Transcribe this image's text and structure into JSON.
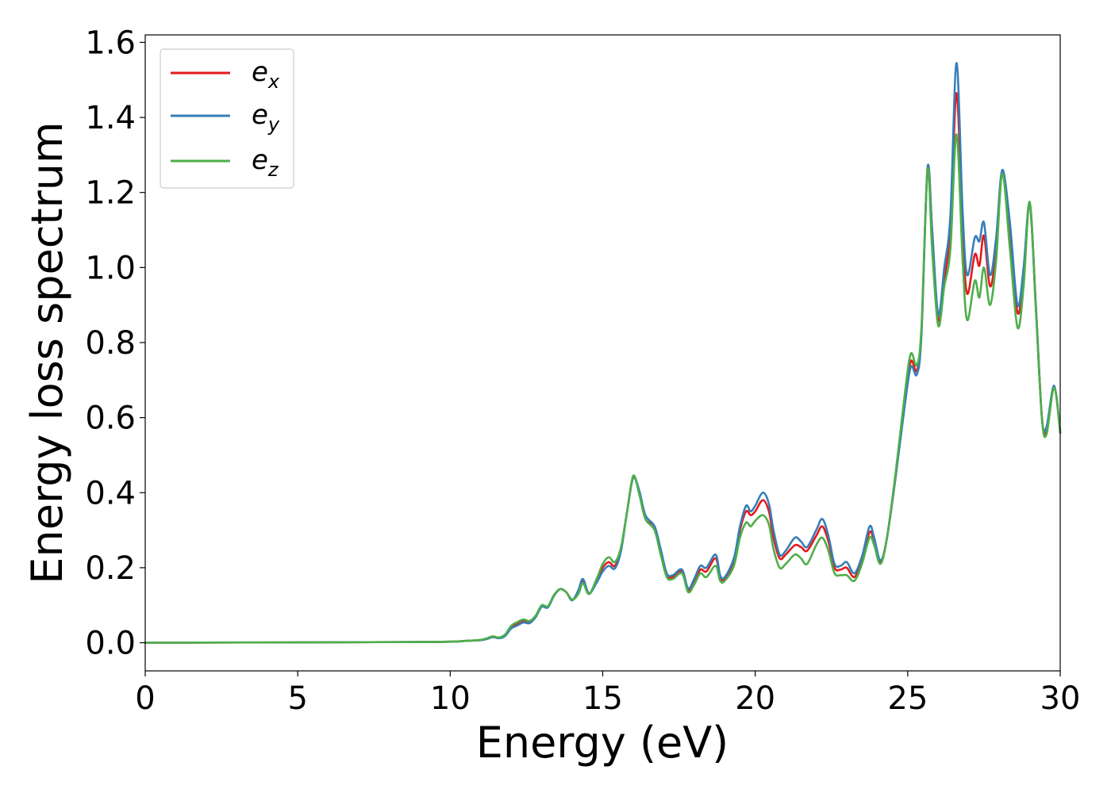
{
  "chart_data": {
    "type": "line",
    "title": "",
    "xlabel": "Energy (eV)",
    "ylabel": "Energy loss spectrum",
    "xlim": [
      0,
      30
    ],
    "ylim": [
      -0.075,
      1.62
    ],
    "xticks": [
      0,
      5,
      10,
      15,
      20,
      25,
      30
    ],
    "xtick_labels": [
      "0",
      "5",
      "10",
      "15",
      "20",
      "25",
      "30"
    ],
    "yticks": [
      0.0,
      0.2,
      0.4,
      0.6,
      0.8,
      1.0,
      1.2,
      1.4,
      1.6
    ],
    "ytick_labels": [
      "0.0",
      "0.2",
      "0.4",
      "0.6",
      "0.8",
      "1.0",
      "1.2",
      "1.4",
      "1.6"
    ],
    "grid": false,
    "legend_position": "top-left",
    "series": [
      {
        "name": "e_x",
        "legend_base": "e",
        "legend_sub": "x",
        "color": "#e41a1c",
        "points": [
          [
            0,
            0
          ],
          [
            9,
            0.002
          ],
          [
            10.5,
            0.005
          ],
          [
            11,
            0.007
          ],
          [
            11.2,
            0.01
          ],
          [
            11.4,
            0.016
          ],
          [
            11.6,
            0.013
          ],
          [
            11.8,
            0.02
          ],
          [
            12,
            0.04
          ],
          [
            12.2,
            0.05
          ],
          [
            12.4,
            0.058
          ],
          [
            12.6,
            0.055
          ],
          [
            12.8,
            0.07
          ],
          [
            13,
            0.098
          ],
          [
            13.2,
            0.095
          ],
          [
            13.4,
            0.125
          ],
          [
            13.6,
            0.143
          ],
          [
            13.8,
            0.135
          ],
          [
            14,
            0.115
          ],
          [
            14.2,
            0.135
          ],
          [
            14.35,
            0.165
          ],
          [
            14.55,
            0.13
          ],
          [
            14.8,
            0.165
          ],
          [
            15,
            0.2
          ],
          [
            15.2,
            0.215
          ],
          [
            15.4,
            0.205
          ],
          [
            15.6,
            0.25
          ],
          [
            15.8,
            0.35
          ],
          [
            16,
            0.44
          ],
          [
            16.2,
            0.4
          ],
          [
            16.4,
            0.33
          ],
          [
            16.7,
            0.31
          ],
          [
            16.9,
            0.245
          ],
          [
            17.1,
            0.18
          ],
          [
            17.3,
            0.175
          ],
          [
            17.6,
            0.19
          ],
          [
            17.8,
            0.14
          ],
          [
            18,
            0.16
          ],
          [
            18.2,
            0.195
          ],
          [
            18.4,
            0.19
          ],
          [
            18.7,
            0.225
          ],
          [
            18.85,
            0.175
          ],
          [
            19,
            0.17
          ],
          [
            19.3,
            0.215
          ],
          [
            19.5,
            0.3
          ],
          [
            19.7,
            0.35
          ],
          [
            19.85,
            0.34
          ],
          [
            20,
            0.35
          ],
          [
            20.25,
            0.38
          ],
          [
            20.45,
            0.35
          ],
          [
            20.6,
            0.28
          ],
          [
            20.8,
            0.225
          ],
          [
            21,
            0.235
          ],
          [
            21.3,
            0.26
          ],
          [
            21.5,
            0.255
          ],
          [
            21.7,
            0.245
          ],
          [
            22,
            0.285
          ],
          [
            22.2,
            0.31
          ],
          [
            22.4,
            0.27
          ],
          [
            22.6,
            0.2
          ],
          [
            22.8,
            0.195
          ],
          [
            23,
            0.2
          ],
          [
            23.25,
            0.175
          ],
          [
            23.5,
            0.22
          ],
          [
            23.75,
            0.295
          ],
          [
            23.9,
            0.27
          ],
          [
            24.1,
            0.215
          ],
          [
            24.3,
            0.27
          ],
          [
            24.6,
            0.44
          ],
          [
            24.9,
            0.64
          ],
          [
            25.1,
            0.75
          ],
          [
            25.3,
            0.725
          ],
          [
            25.45,
            0.83
          ],
          [
            25.65,
            1.265
          ],
          [
            25.8,
            1.1
          ],
          [
            26,
            0.86
          ],
          [
            26.2,
            0.97
          ],
          [
            26.4,
            1.1
          ],
          [
            26.6,
            1.465
          ],
          [
            26.8,
            1.1
          ],
          [
            26.95,
            0.93
          ],
          [
            27.2,
            1.035
          ],
          [
            27.35,
            1.005
          ],
          [
            27.5,
            1.085
          ],
          [
            27.7,
            0.95
          ],
          [
            27.9,
            1.05
          ],
          [
            28.1,
            1.255
          ],
          [
            28.35,
            1.1
          ],
          [
            28.6,
            0.88
          ],
          [
            28.8,
            0.98
          ],
          [
            29,
            1.17
          ],
          [
            29.2,
            0.9
          ],
          [
            29.4,
            0.6
          ],
          [
            29.55,
            0.565
          ],
          [
            29.8,
            0.68
          ],
          [
            30,
            0.56
          ]
        ]
      },
      {
        "name": "e_y",
        "legend_base": "e",
        "legend_sub": "y",
        "color": "#377eb8",
        "points": [
          [
            0,
            0
          ],
          [
            9,
            0.002
          ],
          [
            10.5,
            0.005
          ],
          [
            11,
            0.007
          ],
          [
            11.2,
            0.01
          ],
          [
            11.4,
            0.015
          ],
          [
            11.6,
            0.012
          ],
          [
            11.8,
            0.018
          ],
          [
            12,
            0.038
          ],
          [
            12.2,
            0.046
          ],
          [
            12.4,
            0.054
          ],
          [
            12.6,
            0.052
          ],
          [
            12.8,
            0.068
          ],
          [
            13,
            0.096
          ],
          [
            13.2,
            0.094
          ],
          [
            13.4,
            0.125
          ],
          [
            13.6,
            0.143
          ],
          [
            13.8,
            0.135
          ],
          [
            14,
            0.113
          ],
          [
            14.2,
            0.14
          ],
          [
            14.35,
            0.17
          ],
          [
            14.55,
            0.132
          ],
          [
            14.8,
            0.16
          ],
          [
            15,
            0.19
          ],
          [
            15.2,
            0.205
          ],
          [
            15.4,
            0.198
          ],
          [
            15.6,
            0.245
          ],
          [
            15.8,
            0.35
          ],
          [
            16,
            0.44
          ],
          [
            16.2,
            0.405
          ],
          [
            16.4,
            0.34
          ],
          [
            16.7,
            0.31
          ],
          [
            16.9,
            0.25
          ],
          [
            17.1,
            0.185
          ],
          [
            17.3,
            0.18
          ],
          [
            17.6,
            0.195
          ],
          [
            17.8,
            0.145
          ],
          [
            18,
            0.17
          ],
          [
            18.2,
            0.205
          ],
          [
            18.4,
            0.2
          ],
          [
            18.7,
            0.235
          ],
          [
            18.85,
            0.18
          ],
          [
            19,
            0.175
          ],
          [
            19.3,
            0.225
          ],
          [
            19.5,
            0.31
          ],
          [
            19.7,
            0.365
          ],
          [
            19.85,
            0.35
          ],
          [
            20,
            0.365
          ],
          [
            20.25,
            0.4
          ],
          [
            20.45,
            0.37
          ],
          [
            20.6,
            0.3
          ],
          [
            20.8,
            0.235
          ],
          [
            21,
            0.245
          ],
          [
            21.3,
            0.28
          ],
          [
            21.5,
            0.27
          ],
          [
            21.7,
            0.255
          ],
          [
            22,
            0.3
          ],
          [
            22.2,
            0.33
          ],
          [
            22.4,
            0.285
          ],
          [
            22.6,
            0.21
          ],
          [
            22.8,
            0.205
          ],
          [
            23,
            0.215
          ],
          [
            23.25,
            0.185
          ],
          [
            23.5,
            0.23
          ],
          [
            23.75,
            0.31
          ],
          [
            23.9,
            0.28
          ],
          [
            24.1,
            0.22
          ],
          [
            24.3,
            0.27
          ],
          [
            24.6,
            0.44
          ],
          [
            24.9,
            0.63
          ],
          [
            25.1,
            0.735
          ],
          [
            25.3,
            0.715
          ],
          [
            25.45,
            0.82
          ],
          [
            25.65,
            1.265
          ],
          [
            25.8,
            1.1
          ],
          [
            26,
            0.875
          ],
          [
            26.2,
            1
          ],
          [
            26.4,
            1.14
          ],
          [
            26.6,
            1.545
          ],
          [
            26.8,
            1.15
          ],
          [
            26.95,
            0.98
          ],
          [
            27.2,
            1.08
          ],
          [
            27.35,
            1.07
          ],
          [
            27.5,
            1.12
          ],
          [
            27.7,
            0.98
          ],
          [
            27.9,
            1.08
          ],
          [
            28.1,
            1.26
          ],
          [
            28.35,
            1.12
          ],
          [
            28.6,
            0.9
          ],
          [
            28.8,
            1
          ],
          [
            29,
            1.17
          ],
          [
            29.2,
            0.9
          ],
          [
            29.4,
            0.6
          ],
          [
            29.55,
            0.575
          ],
          [
            29.8,
            0.685
          ],
          [
            30,
            0.56
          ]
        ]
      },
      {
        "name": "e_z",
        "legend_base": "e",
        "legend_sub": "z",
        "color": "#4daf4a",
        "points": [
          [
            0,
            0
          ],
          [
            9,
            0.002
          ],
          [
            10.5,
            0.005
          ],
          [
            11,
            0.008
          ],
          [
            11.2,
            0.012
          ],
          [
            11.4,
            0.017
          ],
          [
            11.6,
            0.014
          ],
          [
            11.8,
            0.022
          ],
          [
            12,
            0.045
          ],
          [
            12.2,
            0.055
          ],
          [
            12.4,
            0.062
          ],
          [
            12.6,
            0.058
          ],
          [
            12.8,
            0.072
          ],
          [
            13,
            0.1
          ],
          [
            13.2,
            0.097
          ],
          [
            13.4,
            0.127
          ],
          [
            13.6,
            0.143
          ],
          [
            13.8,
            0.135
          ],
          [
            14,
            0.115
          ],
          [
            14.2,
            0.13
          ],
          [
            14.35,
            0.158
          ],
          [
            14.55,
            0.13
          ],
          [
            14.8,
            0.17
          ],
          [
            15,
            0.21
          ],
          [
            15.2,
            0.228
          ],
          [
            15.4,
            0.215
          ],
          [
            15.6,
            0.255
          ],
          [
            15.8,
            0.35
          ],
          [
            16,
            0.445
          ],
          [
            16.2,
            0.395
          ],
          [
            16.4,
            0.33
          ],
          [
            16.7,
            0.3
          ],
          [
            16.9,
            0.235
          ],
          [
            17.1,
            0.175
          ],
          [
            17.3,
            0.17
          ],
          [
            17.6,
            0.185
          ],
          [
            17.8,
            0.135
          ],
          [
            18,
            0.155
          ],
          [
            18.2,
            0.185
          ],
          [
            18.4,
            0.175
          ],
          [
            18.7,
            0.205
          ],
          [
            18.85,
            0.165
          ],
          [
            19,
            0.165
          ],
          [
            19.3,
            0.205
          ],
          [
            19.5,
            0.28
          ],
          [
            19.7,
            0.32
          ],
          [
            19.85,
            0.31
          ],
          [
            20,
            0.325
          ],
          [
            20.25,
            0.34
          ],
          [
            20.45,
            0.315
          ],
          [
            20.6,
            0.25
          ],
          [
            20.8,
            0.2
          ],
          [
            21,
            0.21
          ],
          [
            21.3,
            0.235
          ],
          [
            21.5,
            0.225
          ],
          [
            21.7,
            0.21
          ],
          [
            22,
            0.26
          ],
          [
            22.2,
            0.28
          ],
          [
            22.4,
            0.245
          ],
          [
            22.6,
            0.185
          ],
          [
            22.8,
            0.18
          ],
          [
            23,
            0.18
          ],
          [
            23.25,
            0.165
          ],
          [
            23.5,
            0.21
          ],
          [
            23.75,
            0.28
          ],
          [
            23.9,
            0.26
          ],
          [
            24.1,
            0.21
          ],
          [
            24.3,
            0.27
          ],
          [
            24.6,
            0.45
          ],
          [
            24.9,
            0.66
          ],
          [
            25.1,
            0.77
          ],
          [
            25.3,
            0.74
          ],
          [
            25.45,
            0.84
          ],
          [
            25.65,
            1.26
          ],
          [
            25.8,
            1.05
          ],
          [
            26,
            0.845
          ],
          [
            26.2,
            0.95
          ],
          [
            26.4,
            1.05
          ],
          [
            26.6,
            1.355
          ],
          [
            26.8,
            1.02
          ],
          [
            26.95,
            0.86
          ],
          [
            27.2,
            0.965
          ],
          [
            27.35,
            0.92
          ],
          [
            27.5,
            1
          ],
          [
            27.7,
            0.9
          ],
          [
            27.9,
            1.02
          ],
          [
            28.1,
            1.25
          ],
          [
            28.35,
            1.05
          ],
          [
            28.6,
            0.84
          ],
          [
            28.8,
            0.95
          ],
          [
            29,
            1.175
          ],
          [
            29.2,
            0.89
          ],
          [
            29.4,
            0.6
          ],
          [
            29.55,
            0.555
          ],
          [
            29.8,
            0.68
          ],
          [
            30,
            0.56
          ]
        ]
      }
    ]
  }
}
